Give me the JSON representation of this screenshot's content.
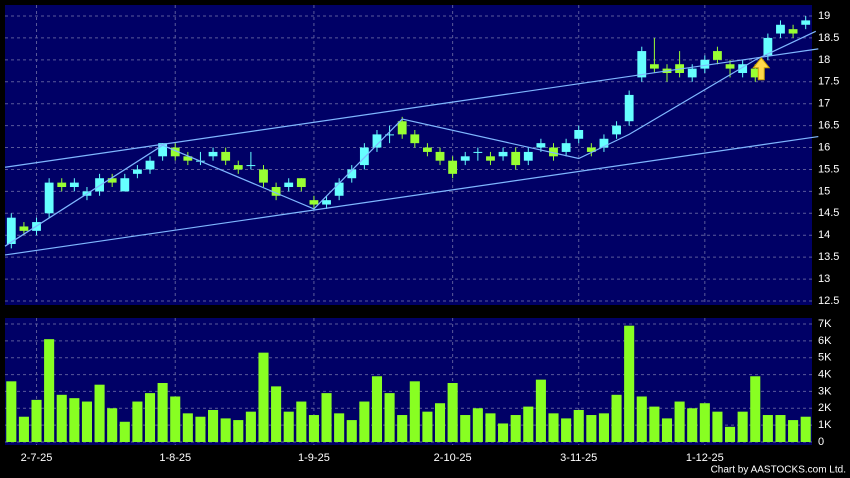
{
  "chart_data": {
    "type": "candlestick",
    "categories": [
      null,
      null,
      "2-7-25",
      null,
      null,
      null,
      null,
      null,
      null,
      null,
      null,
      null,
      null,
      "1-8-25",
      null,
      null,
      null,
      null,
      null,
      null,
      null,
      null,
      null,
      null,
      "1-9-25",
      null,
      null,
      null,
      null,
      null,
      null,
      null,
      null,
      null,
      null,
      "2-10-25",
      null,
      null,
      null,
      null,
      null,
      null,
      null,
      null,
      null,
      "3-11-25",
      null,
      null,
      null,
      null,
      null,
      null,
      null,
      null,
      null,
      "1-12-25",
      null,
      null,
      null,
      null,
      null,
      null,
      null,
      null
    ],
    "ohlc": [
      [
        13.8,
        14.5,
        13.7,
        14.4
      ],
      [
        14.2,
        14.3,
        14.0,
        14.1
      ],
      [
        14.1,
        14.4,
        14.0,
        14.3
      ],
      [
        14.5,
        15.3,
        14.4,
        15.2
      ],
      [
        15.2,
        15.3,
        15.0,
        15.1
      ],
      [
        15.1,
        15.3,
        15.0,
        15.2
      ],
      [
        14.9,
        15.1,
        14.8,
        15.0
      ],
      [
        15.0,
        15.4,
        14.9,
        15.3
      ],
      [
        15.3,
        15.4,
        15.1,
        15.2
      ],
      [
        15.0,
        15.4,
        15.0,
        15.3
      ],
      [
        15.4,
        15.6,
        15.3,
        15.5
      ],
      [
        15.5,
        15.8,
        15.4,
        15.7
      ],
      [
        15.8,
        16.1,
        15.7,
        16.1
      ],
      [
        16.0,
        16.1,
        15.7,
        15.8
      ],
      [
        15.8,
        15.9,
        15.6,
        15.7
      ],
      [
        15.7,
        15.9,
        15.6,
        15.7
      ],
      [
        15.8,
        16.0,
        15.7,
        15.9
      ],
      [
        15.9,
        16.0,
        15.6,
        15.7
      ],
      [
        15.6,
        15.7,
        15.4,
        15.5
      ],
      [
        15.6,
        15.9,
        15.5,
        15.6
      ],
      [
        15.5,
        15.6,
        15.1,
        15.2
      ],
      [
        15.1,
        15.2,
        14.8,
        14.9
      ],
      [
        15.1,
        15.3,
        15.0,
        15.2
      ],
      [
        15.3,
        15.3,
        15.0,
        15.1
      ],
      [
        14.8,
        14.9,
        14.6,
        14.7
      ],
      [
        14.7,
        14.9,
        14.6,
        14.8
      ],
      [
        14.9,
        15.3,
        14.8,
        15.2
      ],
      [
        15.3,
        15.6,
        15.2,
        15.5
      ],
      [
        15.6,
        16.1,
        15.5,
        16.0
      ],
      [
        16.0,
        16.4,
        15.9,
        16.3
      ],
      [
        16.3,
        16.5,
        16.1,
        16.3
      ],
      [
        16.6,
        16.7,
        16.2,
        16.3
      ],
      [
        16.3,
        16.4,
        16.0,
        16.1
      ],
      [
        16.0,
        16.1,
        15.8,
        15.9
      ],
      [
        15.9,
        16.0,
        15.6,
        15.7
      ],
      [
        15.7,
        15.8,
        15.3,
        15.4
      ],
      [
        15.7,
        15.9,
        15.6,
        15.8
      ],
      [
        15.9,
        16.0,
        15.7,
        15.9
      ],
      [
        15.8,
        15.9,
        15.6,
        15.7
      ],
      [
        15.8,
        16.0,
        15.7,
        15.9
      ],
      [
        15.9,
        16.0,
        15.5,
        15.6
      ],
      [
        15.7,
        16.0,
        15.6,
        15.9
      ],
      [
        16.0,
        16.2,
        15.9,
        16.1
      ],
      [
        16.0,
        16.1,
        15.7,
        15.8
      ],
      [
        15.9,
        16.2,
        15.8,
        16.1
      ],
      [
        16.2,
        16.5,
        16.1,
        16.4
      ],
      [
        16.0,
        16.1,
        15.8,
        15.9
      ],
      [
        16.0,
        16.3,
        15.9,
        16.2
      ],
      [
        16.3,
        16.6,
        16.2,
        16.5
      ],
      [
        16.6,
        17.3,
        16.5,
        17.2
      ],
      [
        17.6,
        18.3,
        17.5,
        18.2
      ],
      [
        17.9,
        18.5,
        17.7,
        17.8
      ],
      [
        17.8,
        17.9,
        17.5,
        17.7
      ],
      [
        17.9,
        18.2,
        17.6,
        17.7
      ],
      [
        17.6,
        17.9,
        17.5,
        17.8
      ],
      [
        17.8,
        18.1,
        17.7,
        18.0
      ],
      [
        18.2,
        18.3,
        17.9,
        18.0
      ],
      [
        17.9,
        18.0,
        17.6,
        17.8
      ],
      [
        17.7,
        18.0,
        17.6,
        17.9
      ],
      [
        17.8,
        17.9,
        17.5,
        17.6
      ],
      [
        18.1,
        18.6,
        18.0,
        18.5
      ],
      [
        18.6,
        18.9,
        18.5,
        18.8
      ],
      [
        18.7,
        18.8,
        18.5,
        18.6
      ],
      [
        18.8,
        19.0,
        18.7,
        18.9
      ]
    ],
    "volume": [
      3600,
      1500,
      2500,
      6100,
      2800,
      2600,
      2400,
      3400,
      2000,
      1200,
      2400,
      2900,
      3500,
      2700,
      1700,
      1500,
      1900,
      1400,
      1300,
      1800,
      5300,
      3300,
      1800,
      2400,
      1600,
      2900,
      1700,
      1300,
      2400,
      3900,
      2900,
      1600,
      3600,
      1800,
      2300,
      3500,
      1600,
      2000,
      1700,
      1100,
      1600,
      2100,
      3700,
      1700,
      1400,
      1900,
      1600,
      1700,
      2800,
      6900,
      2700,
      2100,
      1400,
      2400,
      2000,
      2300,
      1800,
      900,
      1800,
      3900,
      1600,
      1600,
      1300,
      1500
    ],
    "ylim": [
      12.5,
      19
    ],
    "yticks": [
      12.5,
      13,
      13.5,
      14,
      14.5,
      15,
      15.5,
      16,
      16.5,
      17,
      17.5,
      18,
      18.5,
      19
    ],
    "vlim": [
      0,
      7000
    ],
    "vticks": [
      0,
      {
        "value": 1000,
        "label": "1K"
      },
      {
        "value": 2000,
        "label": "2K"
      },
      {
        "value": 3000,
        "label": "3K"
      },
      {
        "value": 4000,
        "label": "4K"
      },
      {
        "value": 5000,
        "label": "5K"
      },
      {
        "value": 6000,
        "label": "6K"
      },
      {
        "value": 7000,
        "label": "7K"
      }
    ],
    "trendlines": [
      {
        "x": [
          -0.5,
          64
        ],
        "y": [
          15.55,
          18.25
        ]
      },
      {
        "x": [
          -0.5,
          64
        ],
        "y": [
          13.55,
          16.25
        ]
      },
      {
        "x": [
          -0.5,
          12,
          24,
          31,
          45,
          49,
          59,
          63.8
        ],
        "y": [
          13.75,
          16.05,
          14.6,
          16.65,
          15.75,
          16.3,
          18.0,
          18.65
        ]
      }
    ],
    "up_color": "#66ffff",
    "down_color": "#99ff33",
    "volume_color": "#88ff22",
    "line_color": "#7fb7ff",
    "grid": true,
    "credit": "Chart by AASTOCKS.com Ltd."
  }
}
